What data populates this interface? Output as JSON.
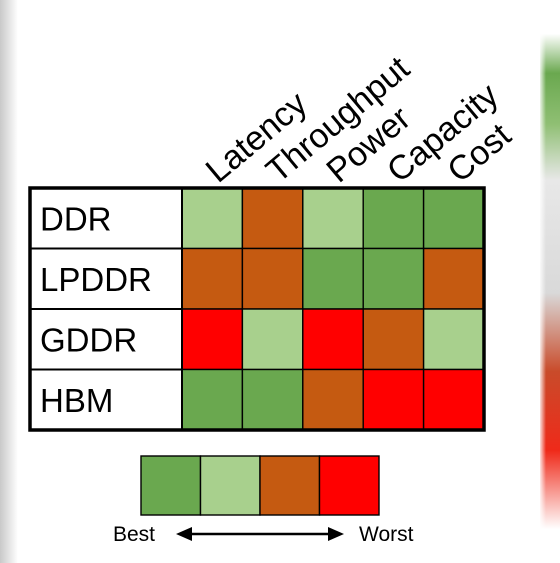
{
  "chart_data": {
    "type": "heatmap",
    "columns": [
      "Latency",
      "Throughput",
      "Power",
      "Capacity",
      "Cost"
    ],
    "rows": [
      "DDR",
      "LPDDR",
      "GDDR",
      "HBM"
    ],
    "ratings": [
      [
        2,
        3,
        2,
        1,
        1
      ],
      [
        3,
        3,
        1,
        1,
        3
      ],
      [
        4,
        2,
        4,
        3,
        2
      ],
      [
        1,
        1,
        3,
        4,
        4
      ]
    ],
    "scale": [
      {
        "rank": 1,
        "color": "#6aa84f"
      },
      {
        "rank": 2,
        "color": "#a8d08d"
      },
      {
        "rank": 3,
        "color": "#c55a11"
      },
      {
        "rank": 4,
        "color": "#ff0000"
      }
    ],
    "legend": {
      "low_label": "Best",
      "high_label": "Worst"
    }
  }
}
